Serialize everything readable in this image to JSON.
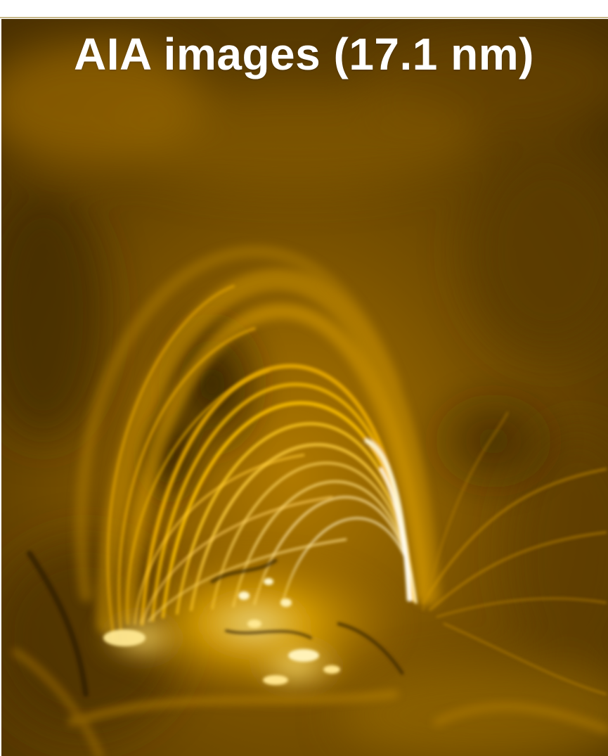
{
  "figure": {
    "title": "AIA images (17.1 nm)",
    "palette": {
      "dark": "#3a2600",
      "mid": "#8a5e00",
      "bright": "#e6a400",
      "highlight": "#fff2b0"
    }
  }
}
